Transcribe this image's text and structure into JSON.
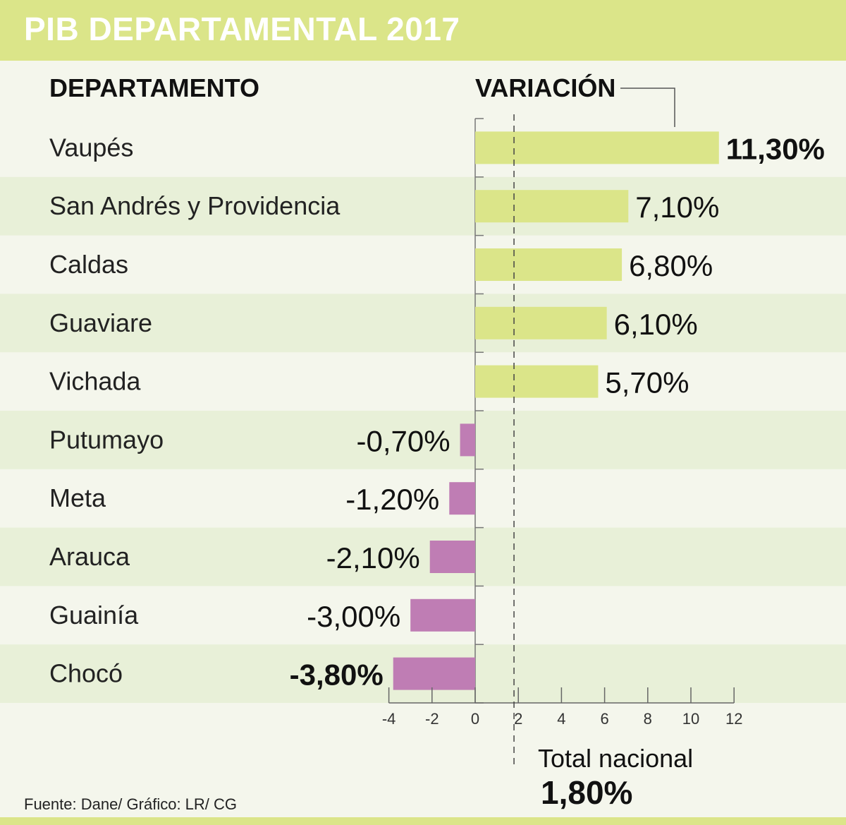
{
  "header": {
    "title": "PIB DEPARTAMENTAL 2017"
  },
  "columns": {
    "department": "DEPARTAMENTO",
    "variation": "VARIACIÓN"
  },
  "total": {
    "label": "Total nacional",
    "value": "1,80%"
  },
  "source": "Fuente: Dane/ Gráfico: LR/ CG",
  "colors": {
    "positive": "#dbe589",
    "negative": "#bf7db4",
    "stripe": "#e8f0d8",
    "background": "#f4f6ec"
  },
  "chart_data": {
    "type": "bar",
    "orientation": "horizontal",
    "categories": [
      "Vaupés",
      "San Andrés y Providencia",
      "Caldas",
      "Guaviare",
      "Vichada",
      "Putumayo",
      "Meta",
      "Arauca",
      "Guainía",
      "Chocó"
    ],
    "values": [
      11.3,
      7.1,
      6.8,
      6.1,
      5.7,
      -0.7,
      -1.2,
      -2.1,
      -3.0,
      -3.8
    ],
    "value_labels": [
      "11,30%",
      "7,10%",
      "6,80%",
      "6,10%",
      "5,70%",
      "-0,70%",
      "-1,20%",
      "-2,10%",
      "-3,00%",
      "-3,80%"
    ],
    "bold_labels": [
      true,
      false,
      false,
      false,
      false,
      false,
      false,
      false,
      false,
      true
    ],
    "xlim": [
      -4,
      12
    ],
    "ticks": [
      -4,
      -2,
      0,
      2,
      4,
      6,
      8,
      10,
      12
    ],
    "tick_labels": [
      "-4",
      "-2",
      "0",
      "2",
      "4",
      "6",
      "8",
      "10",
      "12"
    ],
    "reference_line": {
      "value": 1.8
    }
  }
}
